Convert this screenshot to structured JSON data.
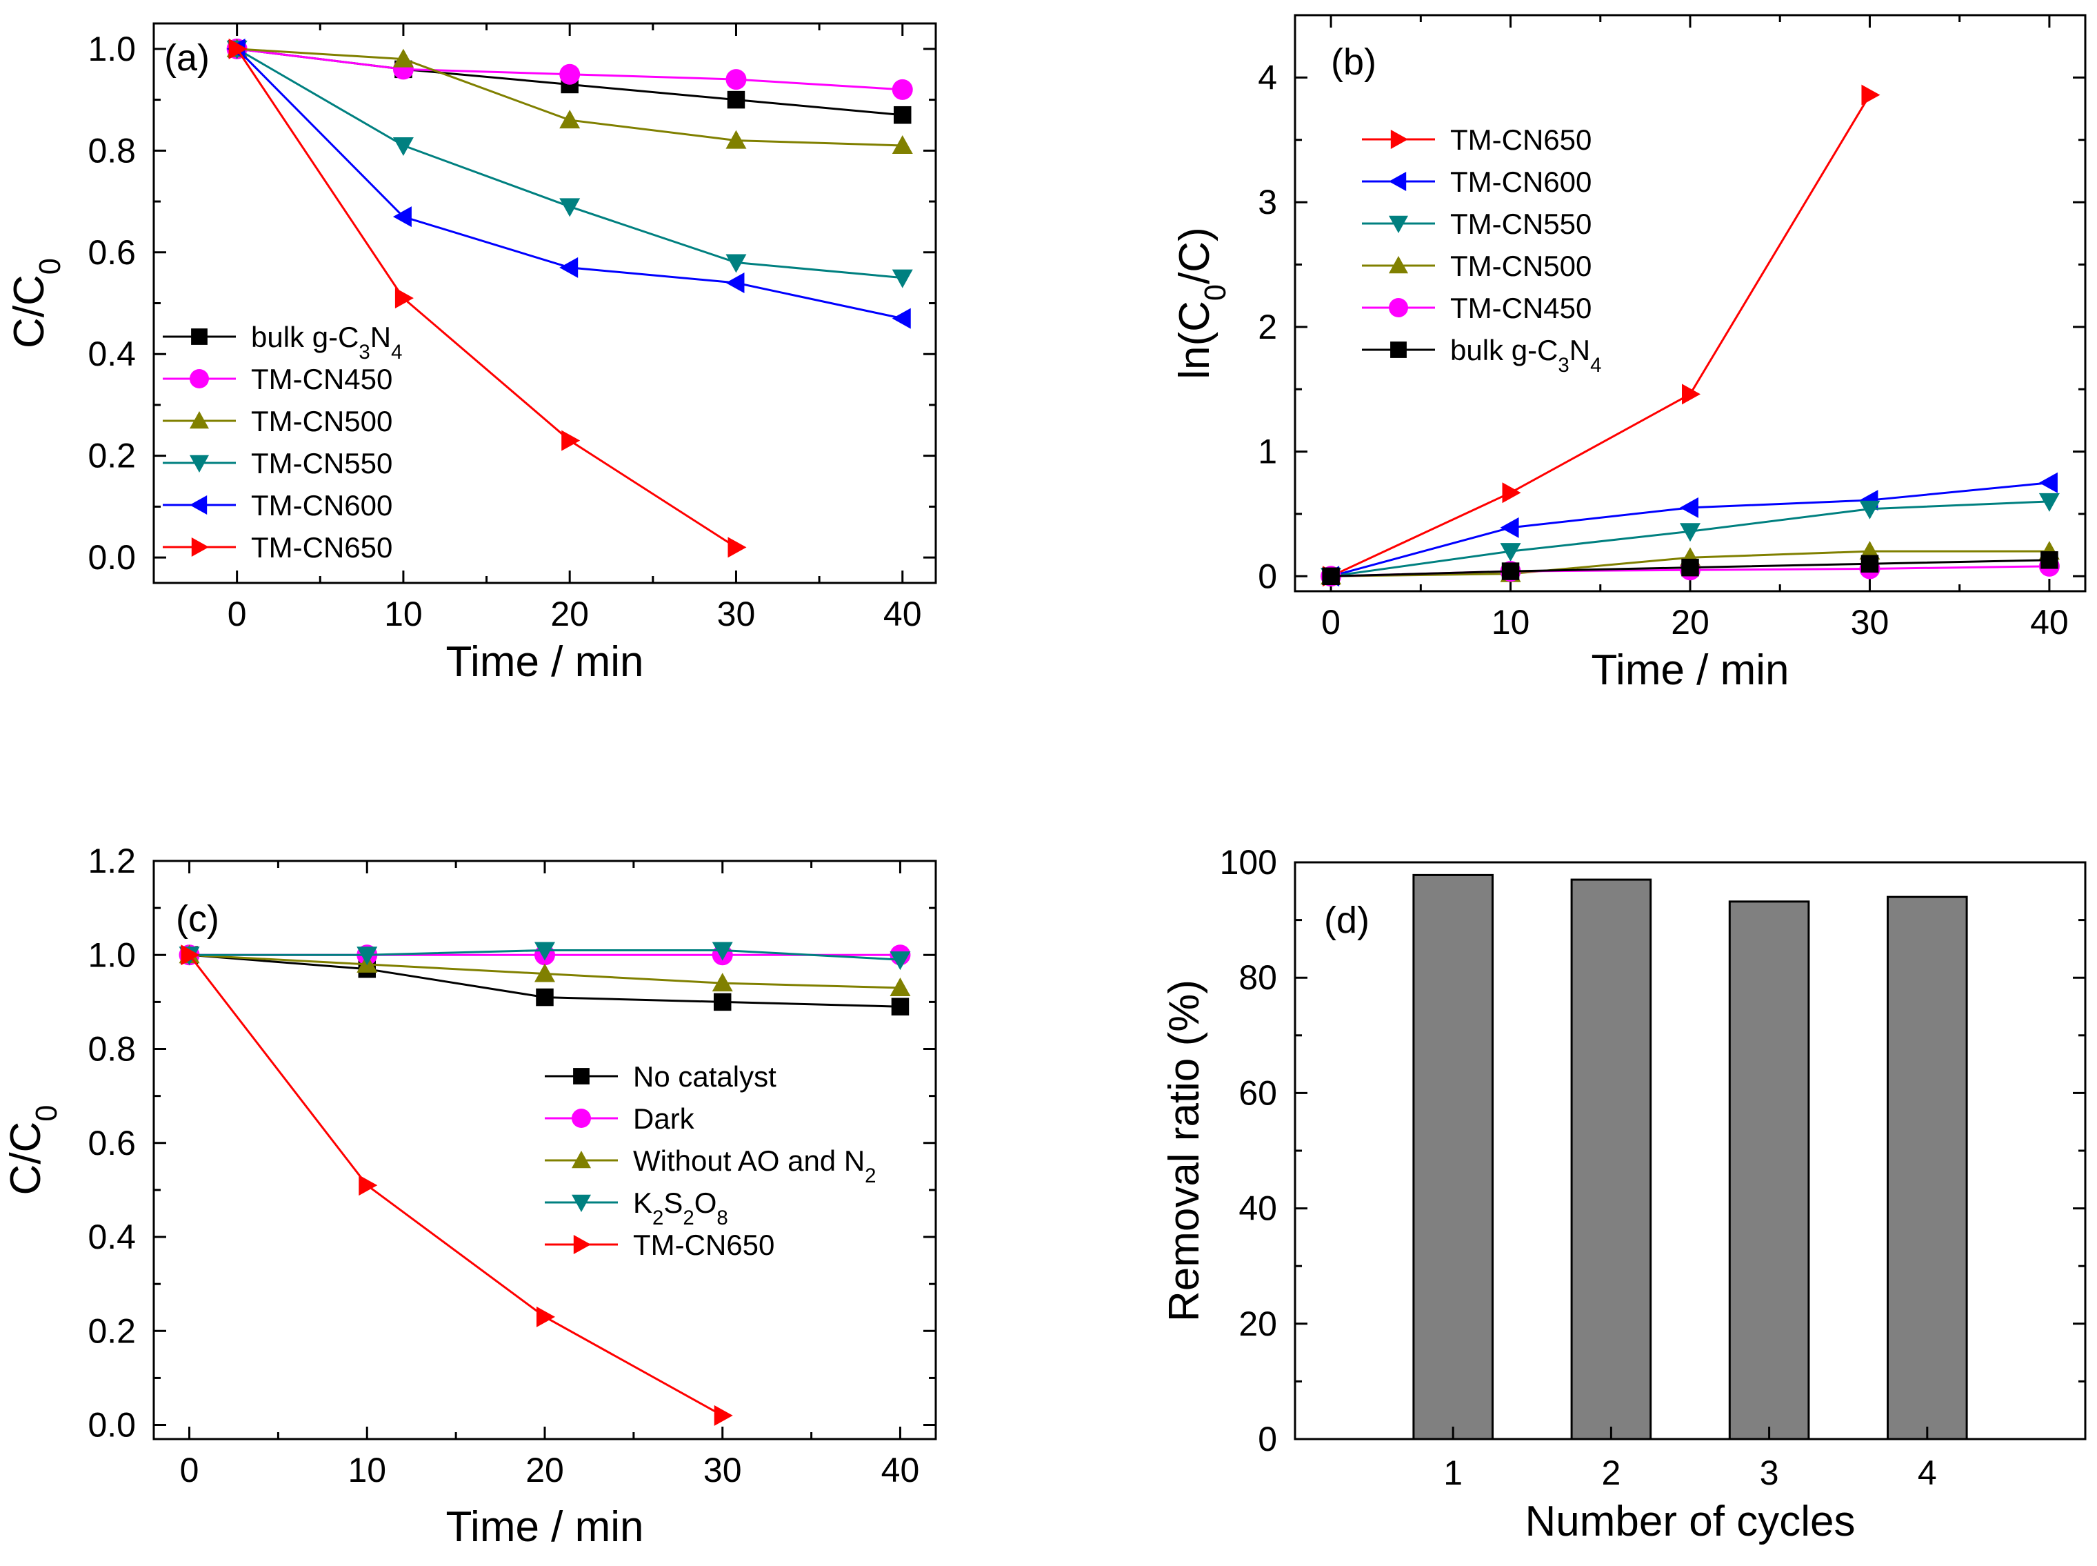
{
  "chart_data": [
    {
      "id": "a",
      "type": "line",
      "panel_label": "(a)",
      "xlabel": "Time / min",
      "ylabel": "C/C",
      "ylabel_sub": "0",
      "xlim": [
        -5,
        42
      ],
      "ylim": [
        -0.05,
        1.05
      ],
      "xticks": [
        0,
        10,
        20,
        30,
        40
      ],
      "xtick_labels": [
        "0",
        "10",
        "20",
        "30",
        "40"
      ],
      "yticks": [
        0.0,
        0.2,
        0.4,
        0.6,
        0.8,
        1.0
      ],
      "ytick_labels": [
        "0.0",
        "0.2",
        "0.4",
        "0.6",
        "0.8",
        "1.0"
      ],
      "legend_position": "lower-left",
      "series": [
        {
          "name": "bulk g-C3N4",
          "label_parts": [
            {
              "t": "bulk g-C"
            },
            {
              "t": "3",
              "sub": true
            },
            {
              "t": "N"
            },
            {
              "t": "4",
              "sub": true
            }
          ],
          "color": "#000000",
          "marker": "square",
          "x": [
            0,
            10,
            20,
            30,
            40
          ],
          "y": [
            1.0,
            0.96,
            0.93,
            0.9,
            0.87
          ]
        },
        {
          "name": "TM-CN450",
          "color": "#ff00ff",
          "marker": "circle",
          "x": [
            0,
            10,
            20,
            30,
            40
          ],
          "y": [
            1.0,
            0.96,
            0.95,
            0.94,
            0.92
          ]
        },
        {
          "name": "TM-CN500",
          "color": "#808000",
          "marker": "triangle-up",
          "x": [
            0,
            10,
            20,
            30,
            40
          ],
          "y": [
            1.0,
            0.98,
            0.86,
            0.82,
            0.81
          ]
        },
        {
          "name": "TM-CN550",
          "color": "#008080",
          "marker": "triangle-down",
          "x": [
            0,
            10,
            20,
            30,
            40
          ],
          "y": [
            1.0,
            0.81,
            0.69,
            0.58,
            0.55
          ]
        },
        {
          "name": "TM-CN600",
          "color": "#0000ff",
          "marker": "triangle-left",
          "x": [
            0,
            10,
            20,
            30,
            40
          ],
          "y": [
            1.0,
            0.67,
            0.57,
            0.54,
            0.47
          ]
        },
        {
          "name": "TM-CN650",
          "color": "#ff0000",
          "marker": "triangle-right",
          "x": [
            0,
            10,
            20,
            30
          ],
          "y": [
            1.0,
            0.51,
            0.23,
            0.02
          ]
        }
      ]
    },
    {
      "id": "b",
      "type": "line",
      "panel_label": "(b)",
      "xlabel": "Time / min",
      "ylabel_parts": [
        {
          "t": "ln(C"
        },
        {
          "t": "0",
          "sub": true
        },
        {
          "t": "/C)"
        }
      ],
      "xlim": [
        -2,
        42
      ],
      "ylim": [
        -0.12,
        4.5
      ],
      "xticks": [
        0,
        10,
        20,
        30,
        40
      ],
      "xtick_labels": [
        "0",
        "10",
        "20",
        "30",
        "40"
      ],
      "yticks": [
        0,
        1,
        2,
        3,
        4
      ],
      "ytick_labels": [
        "0",
        "1",
        "2",
        "3",
        "4"
      ],
      "legend_position": "upper-left",
      "series": [
        {
          "name": "TM-CN650",
          "color": "#ff0000",
          "marker": "triangle-right",
          "x": [
            0,
            10,
            20,
            30
          ],
          "y": [
            0,
            0.67,
            1.46,
            3.86
          ]
        },
        {
          "name": "TM-CN600",
          "color": "#0000ff",
          "marker": "triangle-left",
          "x": [
            0,
            10,
            20,
            30,
            40
          ],
          "y": [
            0,
            0.39,
            0.55,
            0.61,
            0.75
          ]
        },
        {
          "name": "TM-CN550",
          "color": "#008080",
          "marker": "triangle-down",
          "x": [
            0,
            10,
            20,
            30,
            40
          ],
          "y": [
            0,
            0.2,
            0.36,
            0.54,
            0.6
          ]
        },
        {
          "name": "TM-CN500",
          "color": "#808000",
          "marker": "triangle-up",
          "x": [
            0,
            10,
            20,
            30,
            40
          ],
          "y": [
            0,
            0.02,
            0.15,
            0.2,
            0.2
          ]
        },
        {
          "name": "TM-CN450",
          "color": "#ff00ff",
          "marker": "circle",
          "x": [
            0,
            10,
            20,
            30,
            40
          ],
          "y": [
            0,
            0.04,
            0.05,
            0.06,
            0.08
          ]
        },
        {
          "name": "bulk g-C3N4",
          "label_parts": [
            {
              "t": "bulk g-C"
            },
            {
              "t": "3",
              "sub": true
            },
            {
              "t": "N"
            },
            {
              "t": "4",
              "sub": true
            }
          ],
          "color": "#000000",
          "marker": "square",
          "x": [
            0,
            10,
            20,
            30,
            40
          ],
          "y": [
            0,
            0.04,
            0.07,
            0.1,
            0.13
          ]
        }
      ]
    },
    {
      "id": "c",
      "type": "line",
      "panel_label": "(c)",
      "xlabel": "Time / min",
      "ylabel": "C/C",
      "ylabel_sub": "0",
      "xlim": [
        -2,
        42
      ],
      "ylim": [
        -0.03,
        1.2
      ],
      "xticks": [
        0,
        10,
        20,
        30,
        40
      ],
      "xtick_labels": [
        "0",
        "10",
        "20",
        "30",
        "40"
      ],
      "yticks": [
        0.0,
        0.2,
        0.4,
        0.6,
        0.8,
        1.0,
        1.2
      ],
      "ytick_labels": [
        "0.0",
        "0.2",
        "0.4",
        "0.6",
        "0.8",
        "1.0",
        "1.2"
      ],
      "legend_position": "center-right",
      "series": [
        {
          "name": "No catalyst",
          "color": "#000000",
          "marker": "square",
          "x": [
            0,
            10,
            20,
            30,
            40
          ],
          "y": [
            1.0,
            0.97,
            0.91,
            0.9,
            0.89
          ]
        },
        {
          "name": "Dark",
          "color": "#ff00ff",
          "marker": "circle",
          "x": [
            0,
            10,
            20,
            30,
            40
          ],
          "y": [
            1.0,
            1.0,
            1.0,
            1.0,
            1.0
          ]
        },
        {
          "name": "Without AO and N2",
          "label_parts": [
            {
              "t": "Without AO and N"
            },
            {
              "t": "2",
              "sub": true
            }
          ],
          "color": "#808000",
          "marker": "triangle-up",
          "x": [
            0,
            10,
            20,
            30,
            40
          ],
          "y": [
            1.0,
            0.98,
            0.96,
            0.94,
            0.93
          ]
        },
        {
          "name": "K2S2O8",
          "label_parts": [
            {
              "t": "K"
            },
            {
              "t": "2",
              "sub": true
            },
            {
              "t": "S"
            },
            {
              "t": "2",
              "sub": true
            },
            {
              "t": "O"
            },
            {
              "t": "8",
              "sub": true
            }
          ],
          "color": "#008080",
          "marker": "triangle-down",
          "x": [
            0,
            10,
            20,
            30,
            40
          ],
          "y": [
            1.0,
            1.0,
            1.01,
            1.01,
            0.99
          ]
        },
        {
          "name": "TM-CN650",
          "color": "#ff0000",
          "marker": "triangle-right",
          "x": [
            0,
            10,
            20,
            30
          ],
          "y": [
            1.0,
            0.51,
            0.23,
            0.02
          ]
        }
      ]
    },
    {
      "id": "d",
      "type": "bar",
      "panel_label": "(d)",
      "xlabel": "Number of cycles",
      "ylabel": "Removal ratio (%)",
      "categories": [
        "1",
        "2",
        "3",
        "4"
      ],
      "values": [
        97.8,
        97.0,
        93.2,
        94.0
      ],
      "bar_color": "#808080",
      "xlim": [
        0,
        5
      ],
      "ylim": [
        0,
        100
      ],
      "yticks": [
        0,
        20,
        40,
        60,
        80,
        100
      ],
      "ytick_labels": [
        "0",
        "20",
        "40",
        "60",
        "80",
        "100"
      ]
    }
  ]
}
